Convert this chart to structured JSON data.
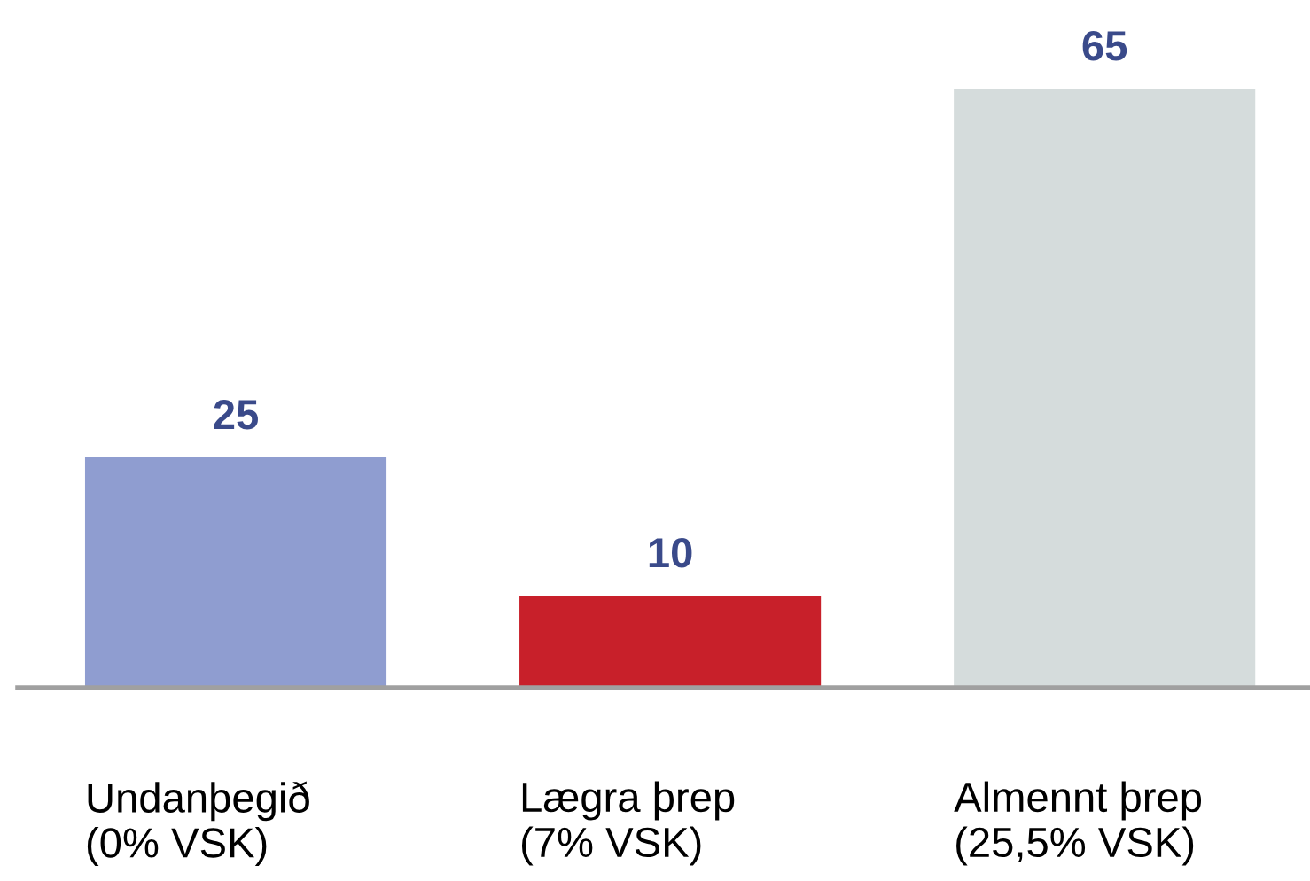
{
  "chart_data": {
    "type": "bar",
    "categories": [
      "Undanþegið\n(0% VSK)",
      "Lægra þrep\n(7% VSK)",
      "Almennt þrep\n(25,5% VSK)"
    ],
    "values": [
      25,
      10,
      65
    ],
    "colors": [
      "#8f9dd0",
      "#c8202a",
      "#d5dcdc"
    ],
    "data_labels": true,
    "grid": false,
    "legend": false,
    "tick_labels": "x"
  }
}
